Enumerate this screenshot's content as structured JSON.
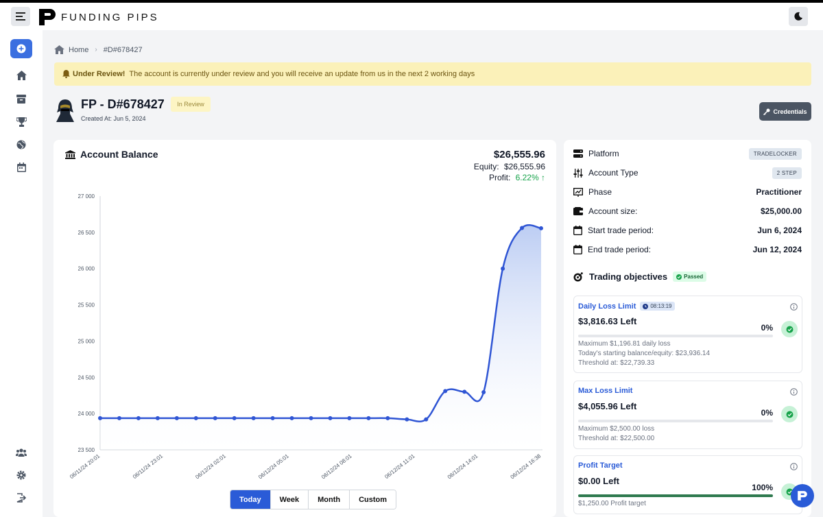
{
  "brand": {
    "name": "FUNDING PIPS"
  },
  "breadcrumb": {
    "home": "Home",
    "current": "#D#678427"
  },
  "alert": {
    "title": "Under Review!",
    "message": "The account is currently under review and you will receive an update from us in the next 2 working days"
  },
  "account": {
    "title": "FP - D#678427",
    "created": "Created At: Jun 5, 2024",
    "status": "In Review",
    "credentials_label": "Credentials"
  },
  "balance": {
    "heading": "Account Balance",
    "amount": "$26,555.96",
    "equity_label": "Equity:",
    "equity_value": "$26,555.96",
    "profit_label": "Profit:",
    "profit_value": "6.22%",
    "ranges": [
      "Today",
      "Week",
      "Month",
      "Custom"
    ],
    "active_range": "Today"
  },
  "chart_data": {
    "type": "area",
    "y_ticks": [
      "27 000",
      "26 500",
      "26 000",
      "25 500",
      "25 000",
      "24 500",
      "24 000",
      "23 500"
    ],
    "ylim": [
      23500,
      27000
    ],
    "x_ticks": [
      "06/11/24 20:01",
      "06/11/24 23:01",
      "06/12/24 02:01",
      "06/12/24 05:01",
      "06/12/24 08:01",
      "06/12/24 11:01",
      "06/12/24 14:01",
      "06/12/24 16:38"
    ],
    "values": [
      23936,
      23936,
      23936,
      23936,
      23936,
      23936,
      23936,
      23936,
      23936,
      23936,
      23936,
      23936,
      23936,
      23936,
      23936,
      23936,
      23920,
      23920,
      24310,
      24300,
      24295,
      26000,
      26560,
      26556
    ],
    "line_color": "#2f55d4"
  },
  "info": {
    "rows": [
      {
        "label": "Platform",
        "value": "TRADELOCKER",
        "chip": true
      },
      {
        "label": "Account Type",
        "value": "2 STEP",
        "chip": true
      },
      {
        "label": "Phase",
        "value": "Practitioner"
      },
      {
        "label": "Account size:",
        "value": "$25,000.00"
      },
      {
        "label": "Start trade period:",
        "value": "Jun 6, 2024"
      },
      {
        "label": "End trade period:",
        "value": "Jun 12, 2024"
      }
    ]
  },
  "objectives": {
    "heading": "Trading objectives",
    "status": "Passed",
    "items": [
      {
        "name": "Daily Loss Limit",
        "timer": "08:13:19",
        "left": "$3,816.63 Left",
        "pct": "0%",
        "progress": 0,
        "lines": [
          "Maximum $1,196.81 daily loss",
          "Today's starting balance/equity: $23,936.14",
          "Threshold at: $22,739.33"
        ]
      },
      {
        "name": "Max Loss Limit",
        "left": "$4,055.96 Left",
        "pct": "0%",
        "progress": 0,
        "lines": [
          "Maximum $2,500.00 loss",
          "Threshold at: $22,500.00"
        ]
      },
      {
        "name": "Profit Target",
        "left": "$0.00 Left",
        "pct": "100%",
        "progress": 1,
        "lines": [
          "$1,250.00 Profit target"
        ]
      }
    ]
  }
}
